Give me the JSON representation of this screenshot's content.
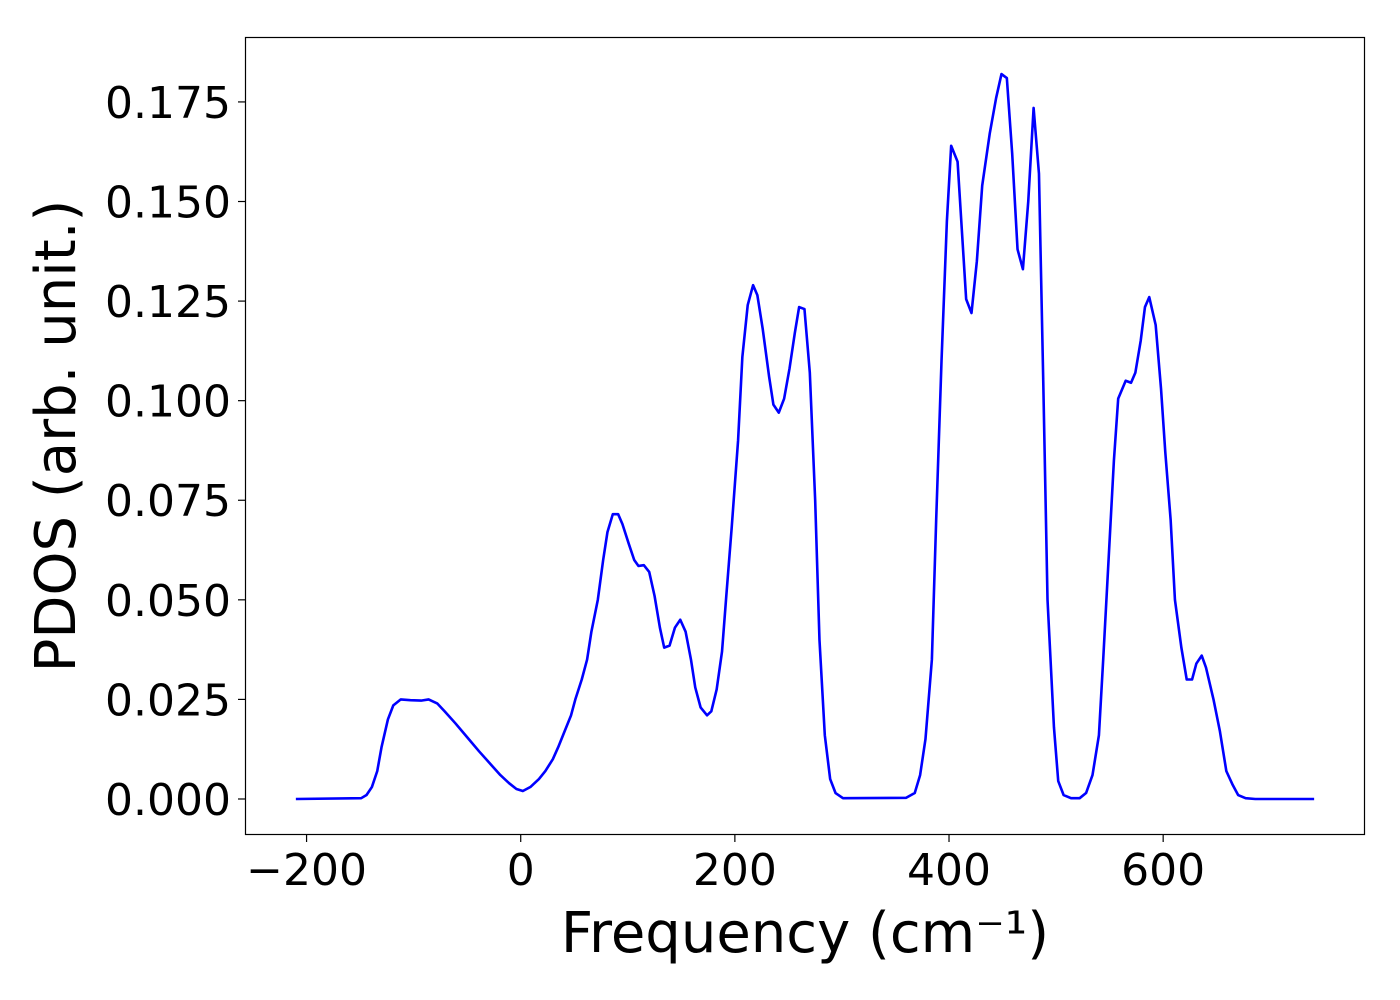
{
  "chart_data": {
    "type": "line",
    "xlabel": "Frequency (cm⁻¹)",
    "ylabel": "PDOS (arb. unit.)",
    "x": [
      -210,
      -149,
      -144,
      -139,
      -134,
      -130,
      -124,
      -119,
      -112,
      -103,
      -93,
      -86,
      -78,
      -71,
      -61,
      -50,
      -39,
      -28,
      -19,
      -11,
      -4,
      2,
      9,
      17,
      23,
      30,
      35,
      41,
      47,
      51,
      57,
      62,
      66,
      72,
      77,
      81,
      86,
      91,
      95,
      101,
      106,
      110,
      115,
      120,
      125,
      130,
      134,
      139,
      144,
      149,
      154,
      159,
      163,
      168,
      174,
      178,
      183,
      188,
      192,
      197,
      203,
      207,
      212,
      217,
      221,
      226,
      232,
      236,
      241,
      246,
      251,
      256,
      260,
      265,
      270,
      275,
      279,
      284,
      289,
      294,
      301,
      360,
      368,
      373,
      378,
      384,
      388,
      393,
      398,
      402,
      408,
      416,
      421,
      426,
      431,
      438,
      444,
      449,
      454,
      459,
      464,
      469,
      474,
      479,
      484,
      488,
      492,
      498,
      502,
      507,
      514,
      522,
      528,
      534,
      540,
      544,
      549,
      554,
      558,
      565,
      570,
      574,
      579,
      583,
      587,
      593,
      598,
      602,
      607,
      611,
      617,
      622,
      627,
      631,
      636,
      640,
      647,
      653,
      659,
      665,
      670,
      677,
      686,
      741
    ],
    "series": [
      {
        "color": "#0000ff",
        "values": [
          0,
          0.0002,
          0.001,
          0.003,
          0.007,
          0.013,
          0.02,
          0.0235,
          0.025,
          0.0248,
          0.0247,
          0.025,
          0.024,
          0.022,
          0.019,
          0.0155,
          0.012,
          0.0087,
          0.006,
          0.004,
          0.0025,
          0.002,
          0.003,
          0.005,
          0.007,
          0.01,
          0.013,
          0.017,
          0.021,
          0.025,
          0.03,
          0.035,
          0.042,
          0.05,
          0.06,
          0.067,
          0.0715,
          0.0715,
          0.069,
          0.064,
          0.06,
          0.0585,
          0.0587,
          0.057,
          0.051,
          0.043,
          0.038,
          0.0385,
          0.043,
          0.045,
          0.042,
          0.035,
          0.028,
          0.023,
          0.021,
          0.022,
          0.0275,
          0.037,
          0.051,
          0.068,
          0.09,
          0.111,
          0.124,
          0.129,
          0.1265,
          0.118,
          0.106,
          0.099,
          0.097,
          0.1005,
          0.108,
          0.117,
          0.1235,
          0.123,
          0.107,
          0.075,
          0.04,
          0.016,
          0.005,
          0.0015,
          0.0002,
          0.0003,
          0.0015,
          0.006,
          0.015,
          0.035,
          0.07,
          0.11,
          0.145,
          0.164,
          0.16,
          0.1255,
          0.122,
          0.135,
          0.154,
          0.167,
          0.176,
          0.182,
          0.181,
          0.162,
          0.138,
          0.133,
          0.15,
          0.1735,
          0.157,
          0.105,
          0.05,
          0.018,
          0.0045,
          0.001,
          0.0002,
          0.0002,
          0.0015,
          0.006,
          0.016,
          0.035,
          0.06,
          0.085,
          0.1005,
          0.105,
          0.1045,
          0.107,
          0.115,
          0.1235,
          0.126,
          0.119,
          0.103,
          0.087,
          0.07,
          0.05,
          0.038,
          0.03,
          0.03,
          0.034,
          0.036,
          0.033,
          0.025,
          0.017,
          0.007,
          0.0035,
          0.001,
          0.0002,
          0,
          0
        ]
      }
    ],
    "xlim": [
      -257.5,
      788.5
    ],
    "ylim": [
      -0.00904,
      0.1913
    ],
    "xticks": [
      {
        "value": -200,
        "label": "−200"
      },
      0,
      200,
      400,
      600
    ],
    "yticks": [
      {
        "value": 0,
        "label": "0.000"
      },
      {
        "value": 0.025,
        "label": "0.025"
      },
      {
        "value": 0.05,
        "label": "0.050"
      },
      {
        "value": 0.075,
        "label": "0.075"
      },
      {
        "value": 0.1,
        "label": "0.100"
      },
      {
        "value": 0.125,
        "label": "0.125"
      },
      {
        "value": 0.15,
        "label": "0.150"
      },
      {
        "value": 0.175,
        "label": "0.175"
      }
    ]
  }
}
